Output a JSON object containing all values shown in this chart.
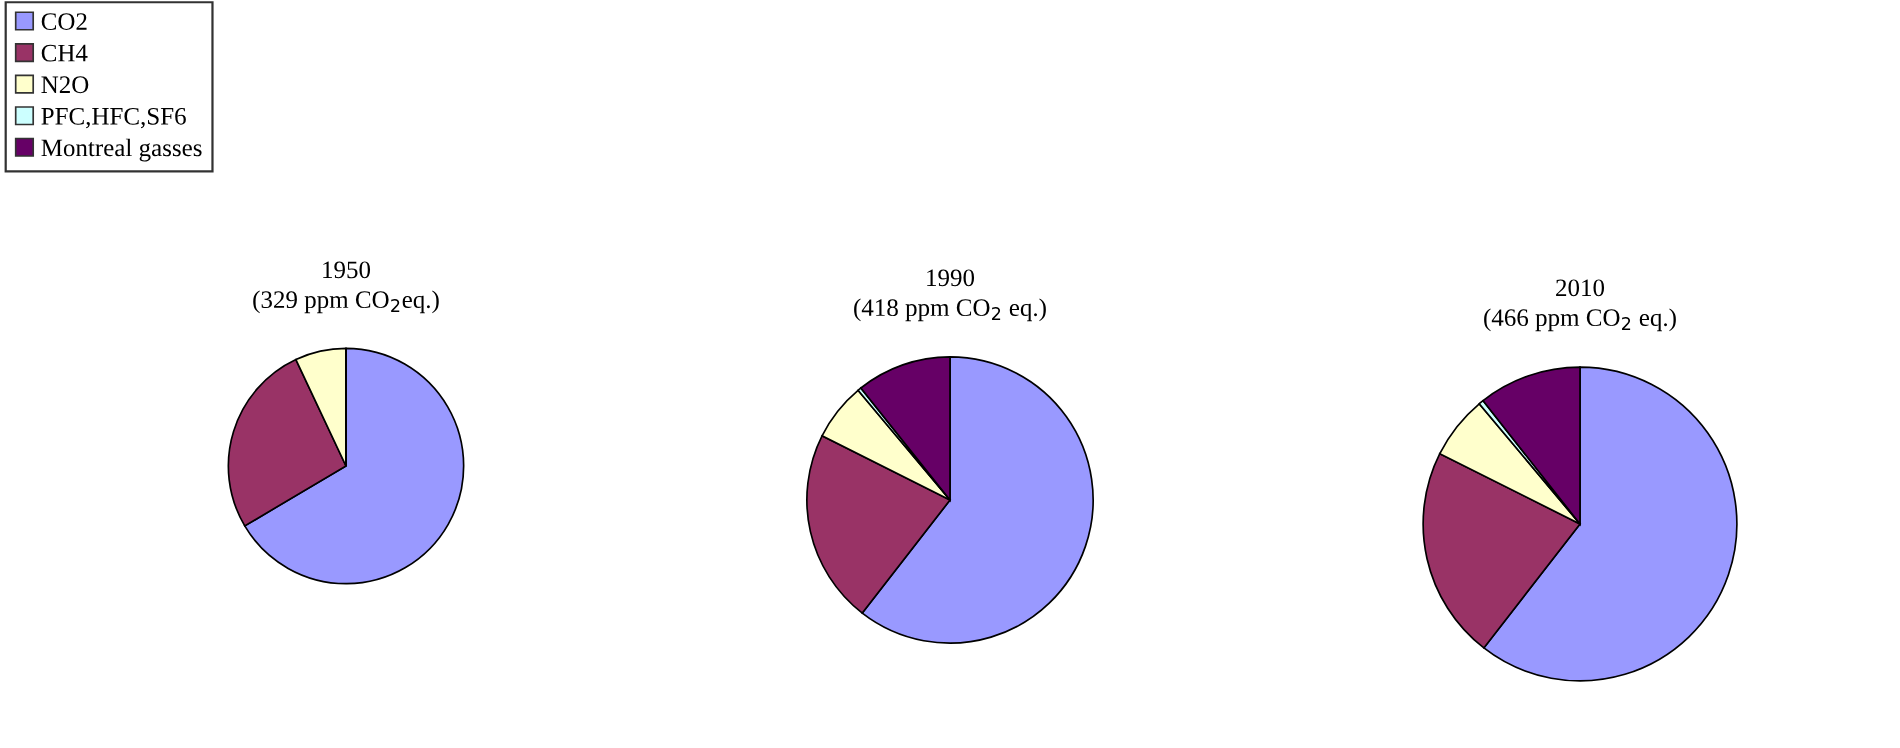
{
  "chart_data": [
    {
      "type": "pie",
      "title": "1950",
      "subtitle": "(329 ppm CO$_{2}$eq.)",
      "legend": "top left",
      "categories": [
        "CO2",
        "CH4",
        "N2O",
        "PFC,HFC,SF6",
        "Montreal gasses"
      ],
      "values": [
        66.5,
        26.5,
        7,
        0,
        0
      ],
      "colors": [
        "#9999ff",
        "#993366",
        "#ffffcc",
        "#ccffff",
        "#660066"
      ]
    },
    {
      "type": "pie",
      "title": "1990",
      "subtitle": "(418 ppm CO$_{2}$ eq.)",
      "categories": [
        null,
        null,
        null,
        null,
        null
      ],
      "values": [
        60.5,
        21.9,
        6.5,
        0.4,
        10.7
      ],
      "colors": [
        "#9999ff",
        "#993366",
        "#ffffcc",
        "#ccffff",
        "#660066"
      ]
    },
    {
      "type": "pie",
      "title": "2010",
      "subtitle": "(466 ppm CO$_{2}$ eq.)",
      "categories": [
        null,
        null,
        null,
        null,
        null
      ],
      "values": [
        60.5,
        21.9,
        6.5,
        0.5,
        10.6
      ],
      "colors": [
        "#9999ff",
        "#993366",
        "#ffffcc",
        "#ccffff",
        "#660066"
      ]
    }
  ]
}
